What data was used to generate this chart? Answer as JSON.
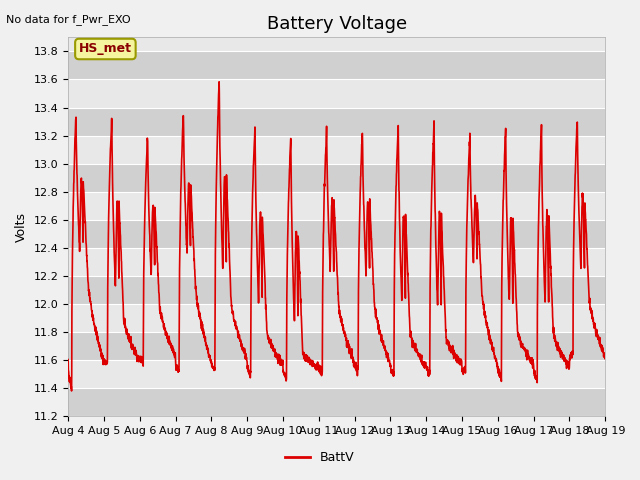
{
  "title": "Battery Voltage",
  "ylabel": "Volts",
  "no_data_text": "No data for f_Pwr_EXO",
  "hs_met_label": "HS_met",
  "legend_label": "BattV",
  "line_color": "#dd0000",
  "fig_bg_color": "#f0f0f0",
  "plot_bg_color": "#e8e8e8",
  "band_color": "#d0d0d0",
  "ylim": [
    11.2,
    13.9
  ],
  "yticks": [
    11.2,
    11.4,
    11.6,
    11.8,
    12.0,
    12.2,
    12.4,
    12.6,
    12.8,
    13.0,
    13.2,
    13.4,
    13.6,
    13.8
  ],
  "xlim": [
    4,
    19
  ],
  "title_fontsize": 13,
  "axis_label_fontsize": 9,
  "tick_fontsize": 8,
  "linewidth": 1.2,
  "day_peaks": [
    13.37,
    13.35,
    13.2,
    13.38,
    13.62,
    13.28,
    13.2,
    13.27,
    13.25,
    13.28,
    13.3,
    13.2,
    13.25,
    13.27,
    13.32
  ],
  "day_mins": [
    11.4,
    11.58,
    11.6,
    11.52,
    11.53,
    11.5,
    11.47,
    11.5,
    11.52,
    11.5,
    11.5,
    11.52,
    11.47,
    11.46,
    11.65
  ],
  "day_mid_drop": [
    12.38,
    12.1,
    12.2,
    12.35,
    12.22,
    12.0,
    11.85,
    12.22,
    12.22,
    12.0,
    11.97,
    12.3,
    12.0,
    12.0,
    12.25
  ],
  "day_start": [
    11.58,
    11.6,
    11.62,
    11.58,
    11.6,
    11.57,
    11.55,
    11.57,
    11.57,
    11.55,
    11.57,
    11.55,
    11.57,
    11.55,
    11.62
  ]
}
